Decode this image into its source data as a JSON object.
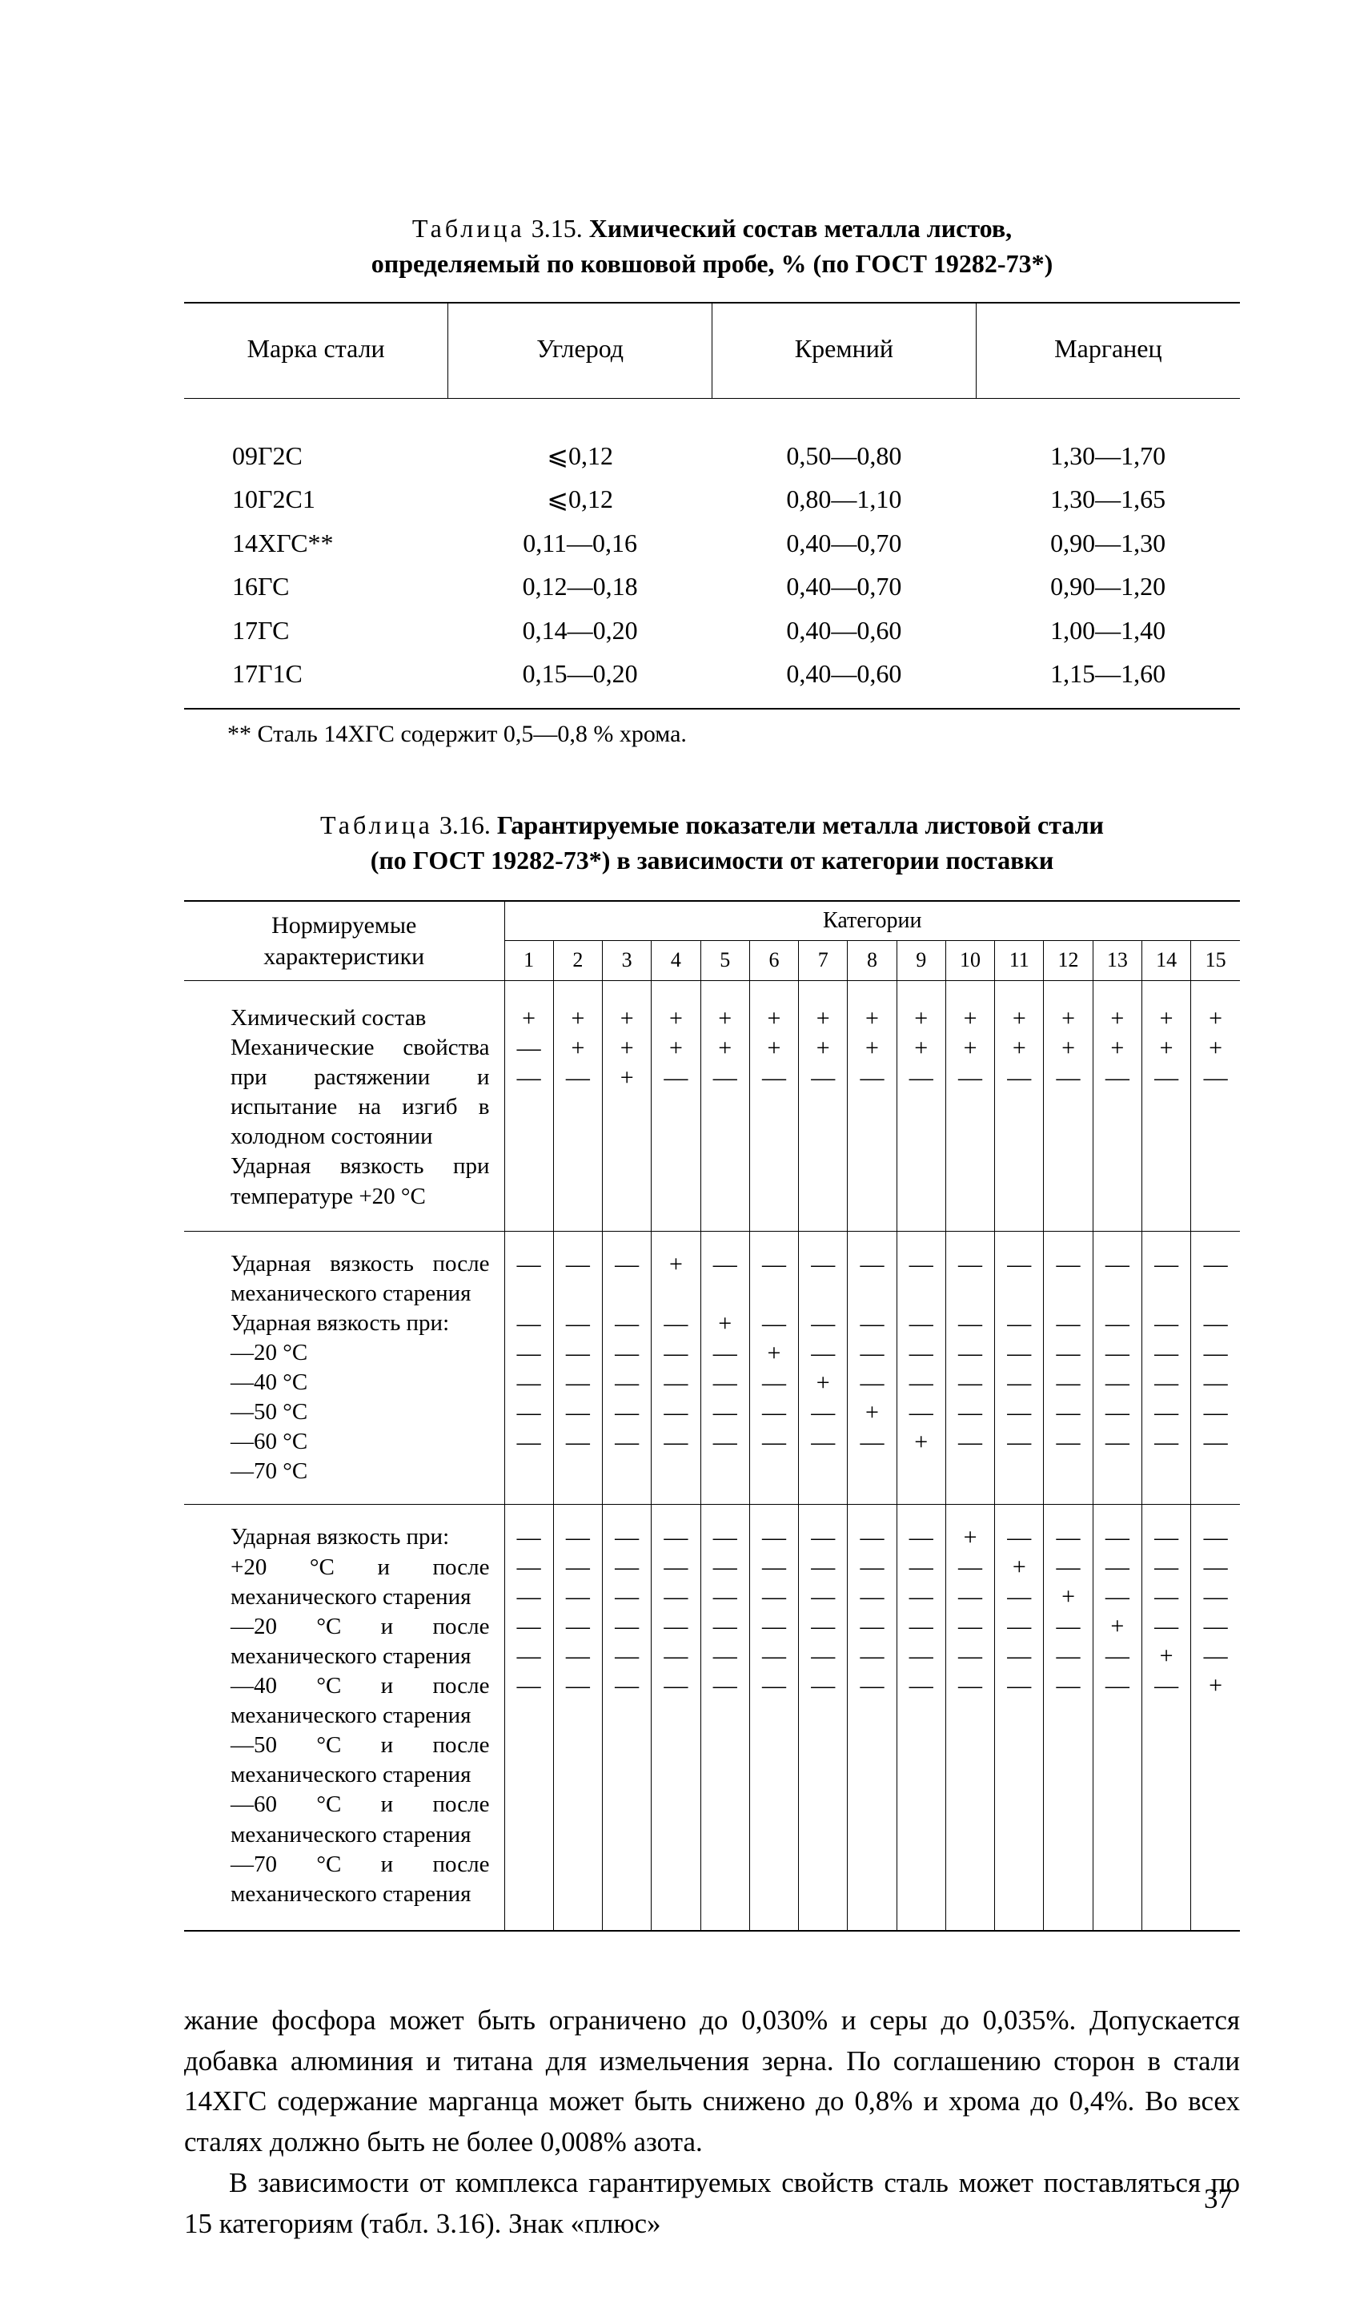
{
  "t315": {
    "label": "Таблица",
    "num": "3.15.",
    "title_line1": "Химический состав металла листов,",
    "title_line2": "определяемый по ковшовой пробе, % (по ГОСТ 19282-73*)",
    "headers": [
      "Марка стали",
      "Углерод",
      "Кремний",
      "Марганец"
    ],
    "rows": [
      [
        "09Г2С",
        "⩽0,12",
        "0,50—0,80",
        "1,30—1,70"
      ],
      [
        "10Г2С1",
        "⩽0,12",
        "0,80—1,10",
        "1,30—1,65"
      ],
      [
        "14ХГС**",
        "0,11—0,16",
        "0,40—0,70",
        "0,90—1,30"
      ],
      [
        "16ГС",
        "0,12—0,18",
        "0,40—0,70",
        "0,90—1,20"
      ],
      [
        "17ГС",
        "0,14—0,20",
        "0,40—0,60",
        "1,00—1,40"
      ],
      [
        "17Г1С",
        "0,15—0,20",
        "0,40—0,60",
        "1,15—1,60"
      ]
    ],
    "footnote": "** Сталь 14ХГС содержит 0,5—0,8 % хрома."
  },
  "t316": {
    "label": "Таблица",
    "num": "3.16.",
    "title_line1": "Гарантируемые показатели металла листовой стали",
    "title_line2": "(по ГОСТ 19282-73*) в зависимости от категории поставки",
    "param_head_line1": "Нормируемые",
    "param_head_line2": "характеристики",
    "cat_label": "Категории",
    "cat_numbers": [
      "1",
      "2",
      "3",
      "4",
      "5",
      "6",
      "7",
      "8",
      "9",
      "10",
      "11",
      "12",
      "13",
      "14",
      "15"
    ],
    "groupA": {
      "param_html": "<span class=\"indent\">Химический состав</span><span class=\"indent\">Механические свойства при растяжении и испытание на изгиб в холодном состоянии</span><span class=\"indent\">Ударная вязкость при температуре +20 °С</span>",
      "n_lines": 3,
      "cols": [
        [
          "+",
          "—",
          "—"
        ],
        [
          "+",
          "+",
          "—"
        ],
        [
          "+",
          "+",
          "+"
        ],
        [
          "+",
          "+",
          "—"
        ],
        [
          "+",
          "+",
          "—"
        ],
        [
          "+",
          "+",
          "—"
        ],
        [
          "+",
          "+",
          "—"
        ],
        [
          "+",
          "+",
          "—"
        ],
        [
          "+",
          "+",
          "—"
        ],
        [
          "+",
          "+",
          "—"
        ],
        [
          "+",
          "+",
          "—"
        ],
        [
          "+",
          "+",
          "—"
        ],
        [
          "+",
          "+",
          "—"
        ],
        [
          "+",
          "+",
          "—"
        ],
        [
          "+",
          "+",
          "—"
        ]
      ]
    },
    "groupB": {
      "param_html": "<span class=\"indent\">Ударная вязкость после механического старения</span><span class=\"indent\">Ударная вязкость при:</span><span class=\"indent\">—20 °С</span><span class=\"indent\">—40 °С</span><span class=\"indent\">—50 °С</span><span class=\"indent\">—60 °С</span><span class=\"indent\">—70 °С</span>",
      "n_lines": 7,
      "cols": [
        [
          "—",
          "",
          "—",
          "—",
          "—",
          "—",
          "—"
        ],
        [
          "—",
          "",
          "—",
          "—",
          "—",
          "—",
          "—"
        ],
        [
          "—",
          "",
          "—",
          "—",
          "—",
          "—",
          "—"
        ],
        [
          "+",
          "",
          "—",
          "—",
          "—",
          "—",
          "—"
        ],
        [
          "—",
          "",
          "+",
          "—",
          "—",
          "—",
          "—"
        ],
        [
          "—",
          "",
          "—",
          "+",
          "—",
          "—",
          "—"
        ],
        [
          "—",
          "",
          "—",
          "—",
          "+",
          "—",
          "—"
        ],
        [
          "—",
          "",
          "—",
          "—",
          "—",
          "+",
          "—"
        ],
        [
          "—",
          "",
          "—",
          "—",
          "—",
          "—",
          "+"
        ],
        [
          "—",
          "",
          "—",
          "—",
          "—",
          "—",
          "—"
        ],
        [
          "—",
          "",
          "—",
          "—",
          "—",
          "—",
          "—"
        ],
        [
          "—",
          "",
          "—",
          "—",
          "—",
          "—",
          "—"
        ],
        [
          "—",
          "",
          "—",
          "—",
          "—",
          "—",
          "—"
        ],
        [
          "—",
          "",
          "—",
          "—",
          "—",
          "—",
          "—"
        ],
        [
          "—",
          "",
          "—",
          "—",
          "—",
          "—",
          "—"
        ]
      ]
    },
    "groupC": {
      "param_html": "<span class=\"indent\">Ударная вязкость при:</span><span class=\"indent\">+20 °С и после механического старения</span><span class=\"indent\">—20 °С и после механического старения</span><span class=\"indent\">—40 °С и после механического старения</span><span class=\"indent\">—50 °С и после механического старения</span><span class=\"indent\">—60 °С и после механического старения</span><span class=\"indent\">—70 °С и после механического старения</span>",
      "n_lines": 6,
      "cols": [
        [
          "—",
          "—",
          "—",
          "—",
          "—",
          "—"
        ],
        [
          "—",
          "—",
          "—",
          "—",
          "—",
          "—"
        ],
        [
          "—",
          "—",
          "—",
          "—",
          "—",
          "—"
        ],
        [
          "—",
          "—",
          "—",
          "—",
          "—",
          "—"
        ],
        [
          "—",
          "—",
          "—",
          "—",
          "—",
          "—"
        ],
        [
          "—",
          "—",
          "—",
          "—",
          "—",
          "—"
        ],
        [
          "—",
          "—",
          "—",
          "—",
          "—",
          "—"
        ],
        [
          "—",
          "—",
          "—",
          "—",
          "—",
          "—"
        ],
        [
          "—",
          "—",
          "—",
          "—",
          "—",
          "—"
        ],
        [
          "+",
          "—",
          "—",
          "—",
          "—",
          "—"
        ],
        [
          "—",
          "+",
          "—",
          "—",
          "—",
          "—"
        ],
        [
          "—",
          "—",
          "+",
          "—",
          "—",
          "—"
        ],
        [
          "—",
          "—",
          "—",
          "+",
          "—",
          "—"
        ],
        [
          "—",
          "—",
          "—",
          "—",
          "+",
          "—"
        ],
        [
          "—",
          "—",
          "—",
          "—",
          "—",
          "+"
        ]
      ]
    }
  },
  "paras": {
    "p1": "жание фосфора может быть ограничено до 0,030% и серы до 0,035%. Допускается добавка алюминия и титана для измельчения зерна. По соглашению сторон в стали 14ХГС содержание марганца может быть снижено до 0,8% и хрома до 0,4%. Во всех сталях должно быть не более 0,008% азота.",
    "p2": "В зависимости от комплекса гарантируемых свойств сталь может поставляться по 15 категориям (табл. 3.16). Знак «плюс»"
  },
  "page_number": "37"
}
